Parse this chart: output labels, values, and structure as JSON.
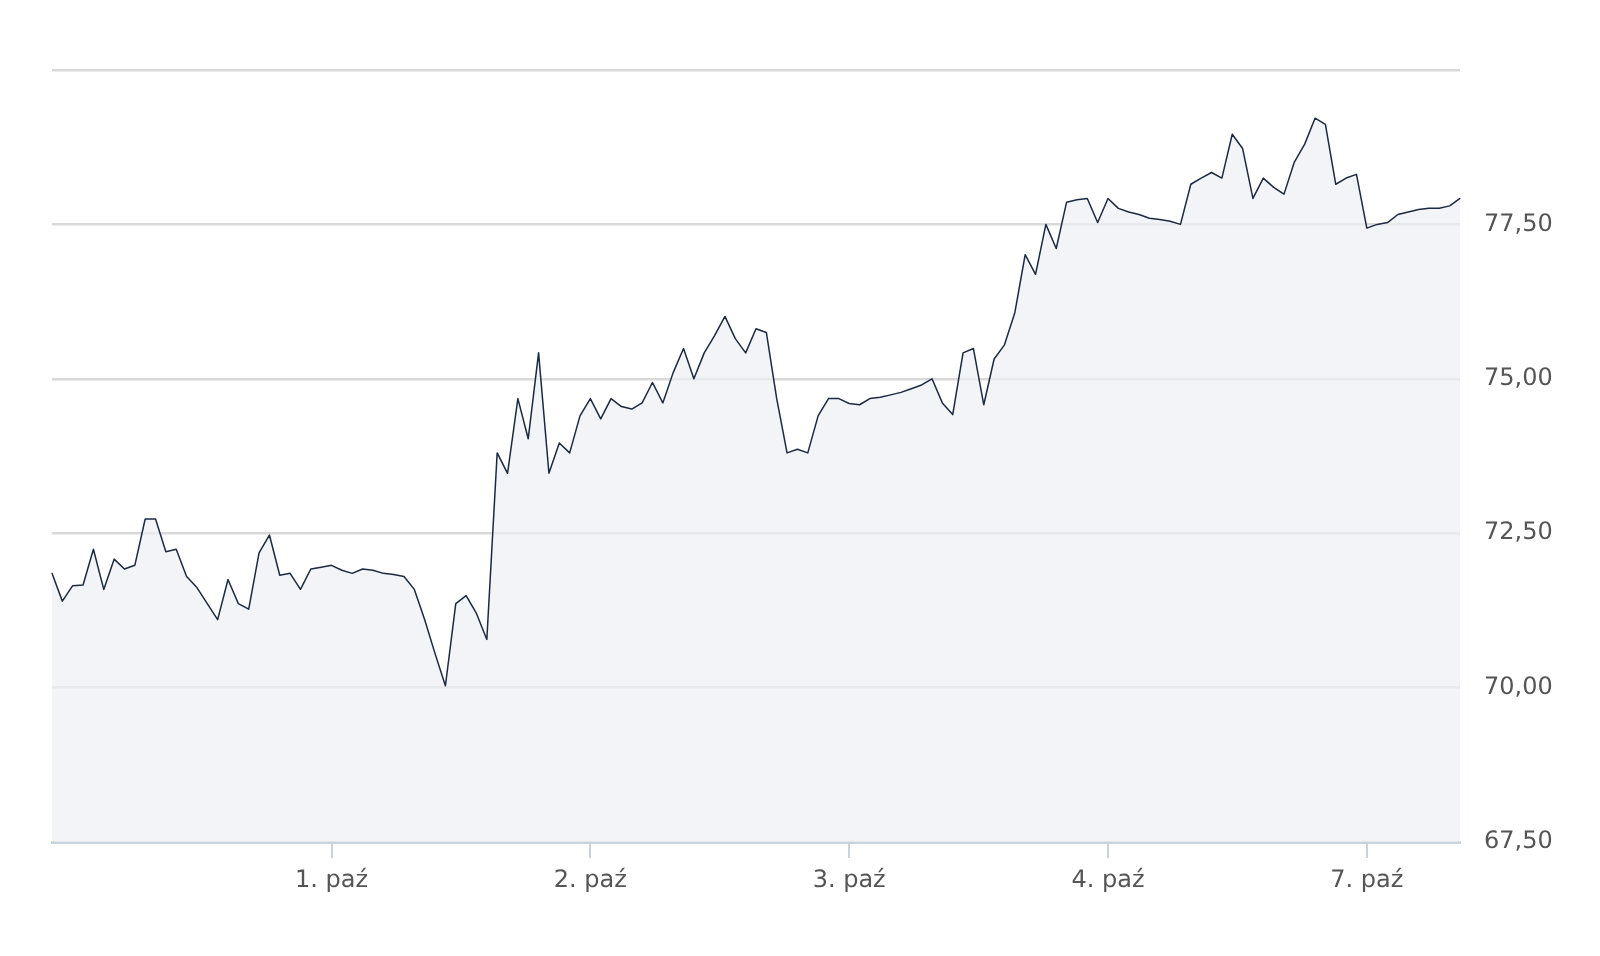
{
  "chart_data": {
    "type": "area",
    "ylim": [
      67.5,
      80
    ],
    "categories": [
      null,
      null,
      null,
      null,
      null,
      null,
      null,
      null,
      null,
      null,
      null,
      null,
      null,
      null,
      null,
      null,
      null,
      null,
      null,
      null,
      null,
      null,
      null,
      null,
      null,
      null,
      null,
      "1. paź",
      null,
      null,
      null,
      null,
      null,
      null,
      null,
      null,
      null,
      null,
      null,
      null,
      null,
      null,
      null,
      null,
      null,
      null,
      null,
      null,
      null,
      null,
      null,
      null,
      "2. paź",
      null,
      null,
      null,
      null,
      null,
      null,
      null,
      null,
      null,
      null,
      null,
      null,
      null,
      null,
      null,
      null,
      null,
      null,
      null,
      null,
      null,
      null,
      null,
      null,
      "3. paź",
      null,
      null,
      null,
      null,
      null,
      null,
      null,
      null,
      null,
      null,
      null,
      null,
      null,
      null,
      null,
      null,
      null,
      null,
      null,
      null,
      null,
      null,
      null,
      null,
      "4. paź",
      null,
      null,
      null,
      null,
      null,
      null,
      null,
      null,
      null,
      null,
      null,
      null,
      null,
      null,
      null,
      null,
      null,
      null,
      null,
      null,
      null,
      null,
      null,
      null,
      "7. paź",
      null,
      null,
      null,
      null,
      null,
      null,
      null,
      null,
      null
    ],
    "yticks": [
      {
        "value": 67.5,
        "label": "67,50"
      },
      {
        "value": 70,
        "label": "70,00"
      },
      {
        "value": 72.5,
        "label": "72,50"
      },
      {
        "value": 75,
        "label": "75,00"
      },
      {
        "value": 77.5,
        "label": "77,50"
      },
      {
        "value": 80,
        "label": null
      }
    ],
    "grid": "y",
    "legend": false,
    "marker": "none",
    "line_style": "solid",
    "series": [
      {
        "color": "#1b2a41",
        "values": [
          71.85,
          71.4,
          71.65,
          71.66,
          72.24,
          71.59,
          72.08,
          71.92,
          71.98,
          72.73,
          72.73,
          72.2,
          72.24,
          71.8,
          71.62,
          71.36,
          71.1,
          71.75,
          71.36,
          71.27,
          72.18,
          72.47,
          71.82,
          71.85,
          71.59,
          71.92,
          71.95,
          71.98,
          71.9,
          71.85,
          71.92,
          71.9,
          71.85,
          71.83,
          71.8,
          71.59,
          71.1,
          70.55,
          70.03,
          71.36,
          71.49,
          71.2,
          70.78,
          73.8,
          73.47,
          74.68,
          74.03,
          75.42,
          73.47,
          73.96,
          73.8,
          74.4,
          74.68,
          74.35,
          74.68,
          74.55,
          74.51,
          74.61,
          74.94,
          74.61,
          75.1,
          75.49,
          75.0,
          75.42,
          75.7,
          76.01,
          75.65,
          75.42,
          75.81,
          75.75,
          74.68,
          73.8,
          73.86,
          73.8,
          74.4,
          74.68,
          74.68,
          74.6,
          74.58,
          74.68,
          74.7,
          74.74,
          74.78,
          74.84,
          74.9,
          75.0,
          74.61,
          74.42,
          75.42,
          75.49,
          74.58,
          75.32,
          75.55,
          76.07,
          77.01,
          76.69,
          77.5,
          77.11,
          77.86,
          77.9,
          77.92,
          77.53,
          77.92,
          77.76,
          77.7,
          77.66,
          77.6,
          77.58,
          77.55,
          77.5,
          78.15,
          78.25,
          78.34,
          78.25,
          78.96,
          78.73,
          77.92,
          78.25,
          78.1,
          77.99,
          78.51,
          78.8,
          79.22,
          79.12,
          78.15,
          78.25,
          78.31,
          77.44,
          77.5,
          77.53,
          77.66,
          77.7,
          77.74,
          77.76,
          77.76,
          77.8,
          77.92
        ]
      }
    ]
  }
}
